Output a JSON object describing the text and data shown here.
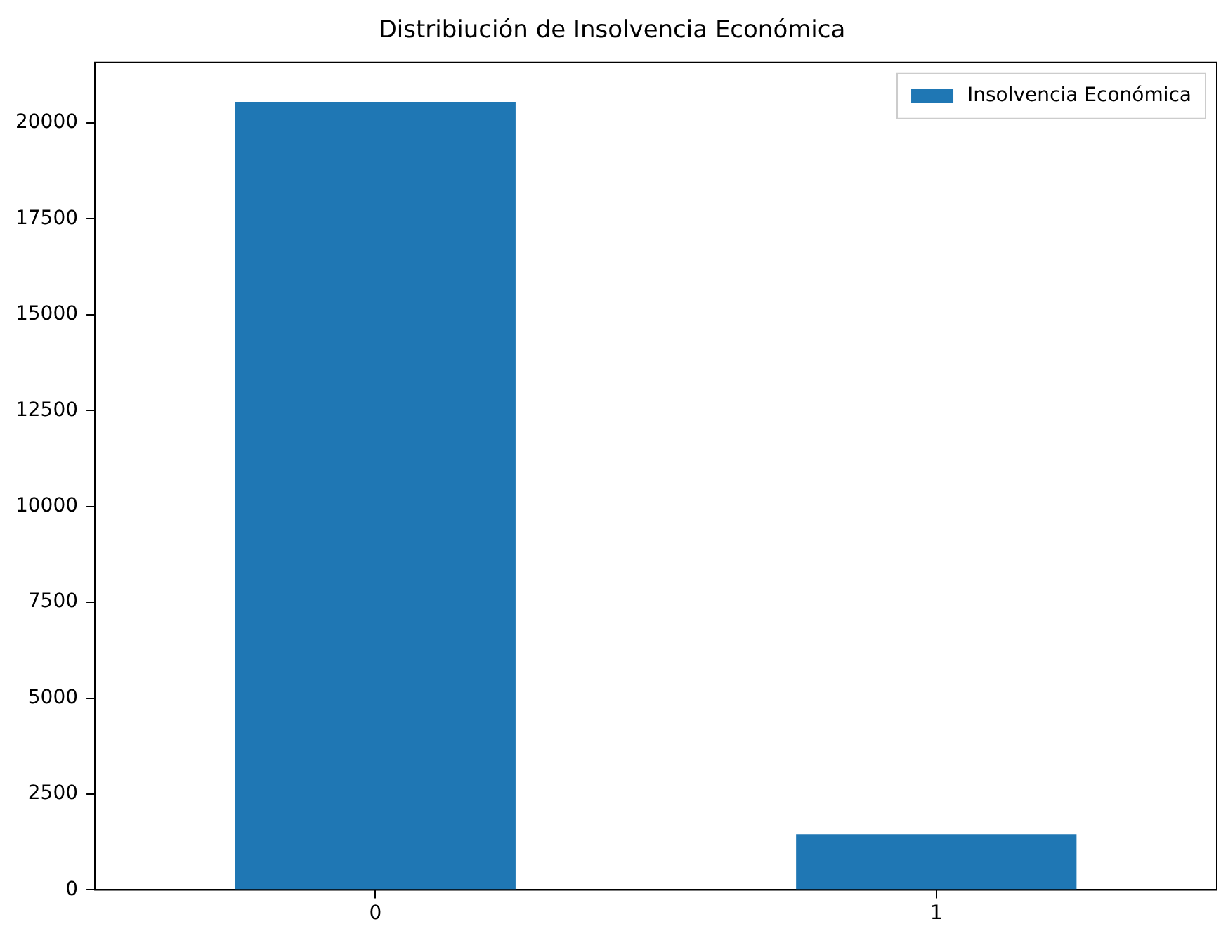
{
  "chart_data": {
    "type": "bar",
    "title": "Distribiución de Insolvencia Económica",
    "categories": [
      "0",
      "1"
    ],
    "series": [
      {
        "name": "Insolvencia Económica",
        "color": "#1f77b4",
        "values": [
          20550,
          1450
        ]
      }
    ],
    "ylim": [
      0,
      21580
    ],
    "yticks": [
      0,
      2500,
      5000,
      7500,
      10000,
      12500,
      15000,
      17500,
      20000
    ],
    "grid": false,
    "legend": "top right"
  }
}
